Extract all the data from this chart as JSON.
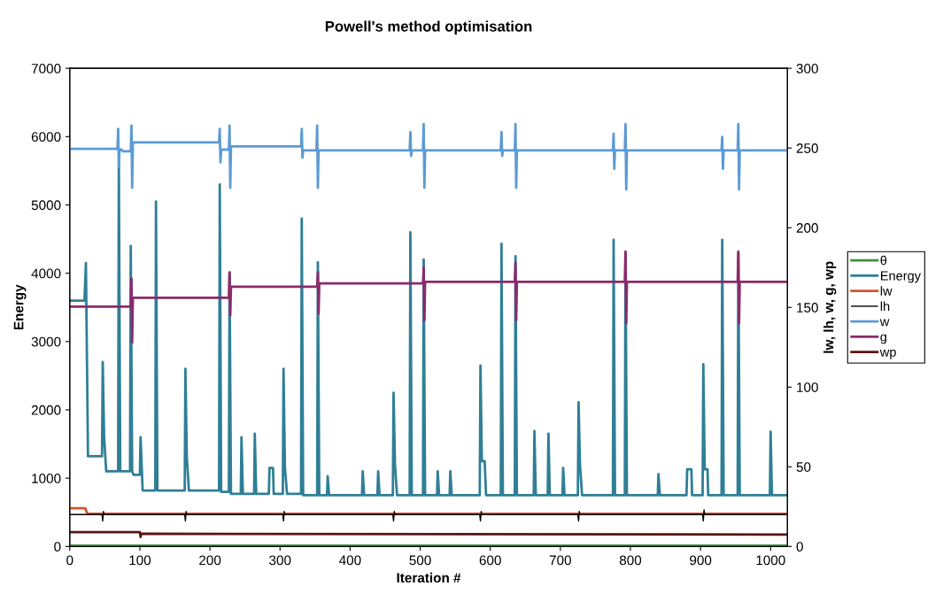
{
  "chart_data": {
    "type": "line",
    "title": "Powell's method optimisation",
    "xlabel": "Iteration #",
    "ylabel": "Energy",
    "y2label": "lw, lh, w, g, wp",
    "xlim": [
      0,
      1024
    ],
    "xticks": [
      0,
      100,
      200,
      300,
      400,
      500,
      600,
      700,
      800,
      900,
      1000
    ],
    "ylim": [
      0,
      7000
    ],
    "yticks": [
      0,
      1000,
      2000,
      3000,
      4000,
      5000,
      6000,
      7000
    ],
    "y2lim": [
      0,
      300
    ],
    "y2ticks": [
      0,
      50,
      100,
      150,
      200,
      250,
      300
    ],
    "grid": false,
    "legend": "right",
    "line_style": "solid",
    "marker": "none",
    "series": [
      {
        "name": "θ",
        "color": "#3f8f3f",
        "axis": "y2",
        "x": [
          0,
          1022
        ],
        "values": [
          0.5,
          0.5
        ]
      },
      {
        "name": "Energy",
        "color": "#2f7f96",
        "axis": "y",
        "x": [
          0,
          21,
          23,
          26,
          46,
          47,
          49,
          52,
          69,
          70,
          72,
          86,
          87,
          89,
          91,
          100,
          101,
          104,
          122,
          123,
          125,
          164,
          165,
          167,
          170,
          213,
          214,
          216,
          227,
          228,
          230,
          244,
          245,
          247,
          263,
          264,
          266,
          284,
          285,
          290,
          291,
          304,
          305,
          307,
          310,
          330,
          331,
          333,
          353,
          354,
          356,
          367,
          368,
          370,
          417,
          418,
          420,
          439,
          440,
          442,
          461,
          462,
          464,
          467,
          485,
          486,
          488,
          504,
          505,
          507,
          524,
          525,
          527,
          542,
          543,
          545,
          585,
          586,
          588,
          592,
          594,
          615,
          616,
          618,
          635,
          636,
          638,
          662,
          663,
          665,
          682,
          683,
          685,
          703,
          704,
          706,
          725,
          726,
          728,
          731,
          775,
          776,
          778,
          792,
          793,
          795,
          839,
          840,
          842,
          880,
          881,
          887,
          888,
          903,
          904,
          906,
          910,
          911,
          930,
          931,
          933,
          953,
          954,
          956,
          999,
          1000,
          1002,
          1022
        ],
        "values": [
          3600,
          3600,
          4150,
          1320,
          1320,
          2700,
          1600,
          1100,
          1100,
          5600,
          1100,
          1100,
          4400,
          1100,
          1050,
          1050,
          1600,
          820,
          820,
          5050,
          820,
          820,
          2600,
          1300,
          820,
          820,
          5300,
          800,
          800,
          4000,
          770,
          770,
          1600,
          770,
          770,
          1650,
          770,
          770,
          1150,
          1150,
          770,
          770,
          2600,
          1150,
          770,
          770,
          4800,
          750,
          750,
          4160,
          750,
          750,
          1030,
          750,
          750,
          1100,
          750,
          750,
          1100,
          750,
          750,
          2250,
          1200,
          750,
          750,
          4600,
          750,
          750,
          4200,
          750,
          750,
          1100,
          750,
          750,
          1100,
          750,
          750,
          2650,
          1250,
          1250,
          750,
          750,
          4430,
          750,
          750,
          4250,
          750,
          750,
          1690,
          750,
          750,
          1650,
          750,
          750,
          1150,
          750,
          750,
          2110,
          1200,
          750,
          750,
          4490,
          750,
          750,
          4300,
          750,
          750,
          1060,
          750,
          750,
          1130,
          1130,
          750,
          750,
          2670,
          1130,
          1130,
          750,
          750,
          4490,
          750,
          750,
          4300,
          750,
          750,
          1680,
          750,
          750
        ]
      },
      {
        "name": "lw",
        "color": "#d4542c",
        "axis": "y2",
        "x": [
          0,
          22,
          25,
          1022
        ],
        "values": [
          24,
          24,
          20.5,
          20.5
        ]
      },
      {
        "name": "lh",
        "color": "#000000",
        "axis": "y2",
        "x": [
          0,
          46,
          47,
          48,
          49,
          164,
          165,
          166,
          167,
          304,
          305,
          306,
          307,
          461,
          462,
          463,
          464,
          585,
          586,
          587,
          588,
          725,
          726,
          727,
          728,
          903,
          904,
          905,
          906,
          1022
        ],
        "values": [
          20,
          20,
          16,
          22,
          20,
          20,
          16,
          22,
          20,
          20,
          16,
          22,
          20,
          20,
          16,
          22,
          20,
          20,
          16,
          22,
          20,
          20,
          16,
          22,
          20,
          20,
          16,
          23,
          20,
          20
        ]
      },
      {
        "name": "w",
        "color": "#5b9bd5",
        "axis": "y2",
        "x": [
          0,
          68,
          69,
          70,
          71,
          74,
          75,
          87,
          88,
          89,
          90,
          213,
          214,
          215,
          216,
          227,
          228,
          229,
          230,
          330,
          331,
          332,
          333,
          352,
          353,
          354,
          355,
          485,
          486,
          487,
          488,
          504,
          505,
          506,
          507,
          615,
          616,
          617,
          618,
          635,
          636,
          637,
          638,
          775,
          776,
          777,
          778,
          792,
          793,
          794,
          795,
          930,
          931,
          932,
          933,
          953,
          954,
          955,
          956,
          1022
        ],
        "values": [
          249.5,
          249.5,
          262,
          238,
          249,
          249,
          248,
          248,
          264,
          225,
          253.5,
          253.5,
          262,
          241,
          249,
          249,
          264,
          225,
          251,
          251,
          262,
          244,
          248.5,
          248.5,
          264,
          225,
          248.5,
          248.5,
          260,
          245,
          248.5,
          248.5,
          265,
          225,
          248.5,
          248.5,
          260,
          245,
          248.5,
          248.5,
          265,
          225,
          248.5,
          248.5,
          259,
          237,
          248.5,
          248.5,
          265,
          224,
          248.5,
          248.5,
          257,
          237,
          248.5,
          248.5,
          265,
          224,
          248.5,
          248.5
        ]
      },
      {
        "name": "g",
        "color": "#8b2a6b",
        "axis": "y2",
        "x": [
          0,
          87,
          88,
          89,
          90,
          227,
          228,
          229,
          230,
          353,
          354,
          355,
          356,
          504,
          505,
          506,
          507,
          635,
          636,
          637,
          638,
          792,
          793,
          794,
          795,
          953,
          954,
          955,
          956,
          1022
        ],
        "values": [
          150.5,
          150.5,
          168,
          128,
          156,
          156,
          172,
          145,
          163,
          163,
          172,
          146,
          165,
          165,
          175,
          142,
          166,
          166,
          178,
          142,
          166,
          166,
          185,
          140,
          166,
          166,
          185,
          140,
          166,
          166
        ]
      },
      {
        "name": "wp",
        "color": "#5a1414",
        "axis": "y2",
        "x": [
          0,
          100,
          101,
          102,
          1022
        ],
        "values": [
          9,
          9,
          6,
          8,
          7.5
        ]
      }
    ]
  }
}
